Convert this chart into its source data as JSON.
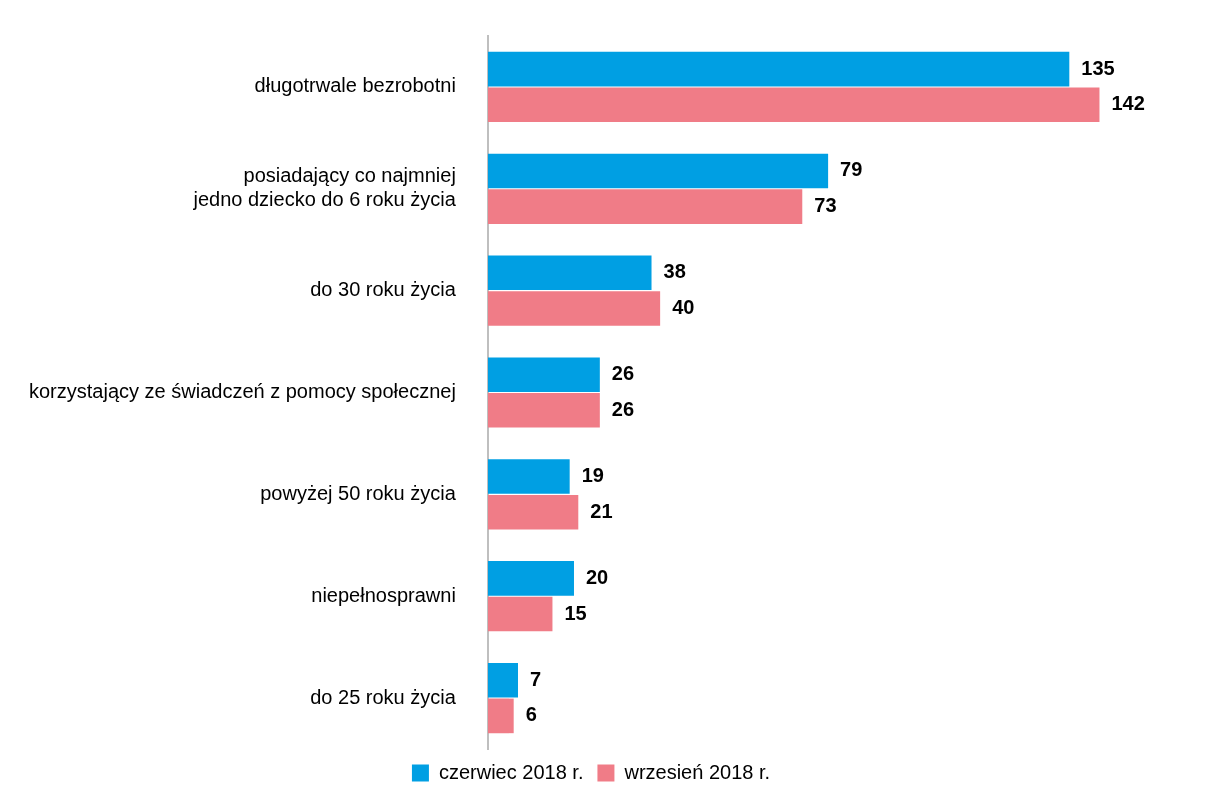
{
  "chart_data": {
    "type": "bar",
    "orientation": "horizontal",
    "categories": [
      "długotrwale bezrobotni",
      "posiadający co najmniej\njedno dziecko do 6 roku życia",
      "do 30 roku życia",
      "korzystający ze świadczeń z pomocy społecznej",
      "powyżej 50 roku życia",
      "niepełnosprawni",
      "do 25 roku życia"
    ],
    "series": [
      {
        "name": "czerwiec 2018 r.",
        "color": "#009fe3",
        "values": [
          135,
          79,
          38,
          26,
          19,
          20,
          7
        ]
      },
      {
        "name": "wrzesień 2018 r.",
        "color": "#f07c87",
        "values": [
          142,
          73,
          40,
          26,
          21,
          15,
          6
        ]
      }
    ],
    "data_labels": true,
    "legend": "bottom"
  }
}
